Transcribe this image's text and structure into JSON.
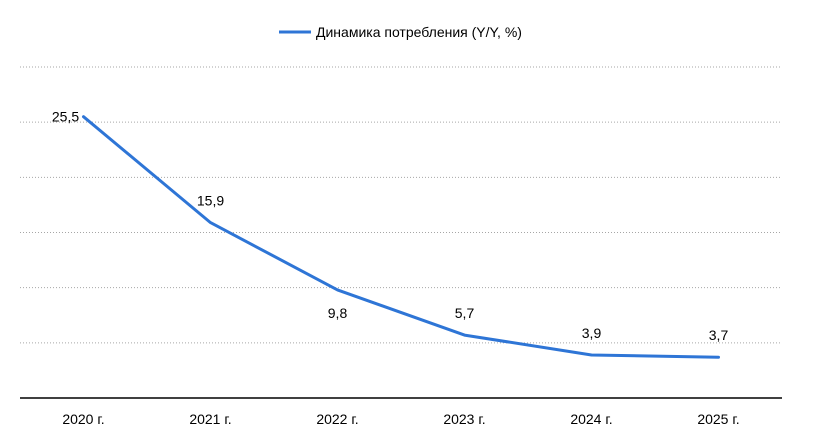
{
  "chart_data": {
    "type": "line",
    "categories": [
      "2020 г.",
      "2021 г.",
      "2022 г.",
      "2023 г.",
      "2024 г.",
      "2025 г."
    ],
    "series": [
      {
        "name": "Динамика потребления (Y/Y, %)",
        "values": [
          25.5,
          15.9,
          9.8,
          5.7,
          3.9,
          3.7
        ],
        "labels": [
          "25,5",
          "15,9",
          "9,8",
          "5,7",
          "3,9",
          "3,7"
        ],
        "color": "#2e75d6"
      }
    ],
    "ylim": [
      0,
      30
    ],
    "grid": true,
    "legend": "top-center"
  }
}
